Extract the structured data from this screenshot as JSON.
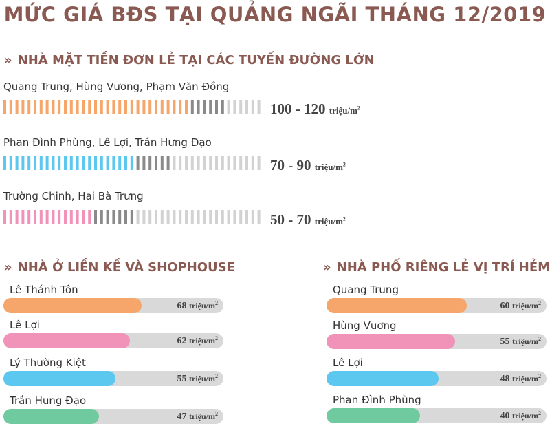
{
  "title": "MỨC GIÁ BĐS TẠI QUẢNG NGÃI THÁNG 12/2019",
  "chart_data": [
    {
      "type": "bar",
      "title": "NHÀ MẶT TIỀN ĐƠN LẺ TẠI CÁC TUYẾN ĐƯỜNG LỚN",
      "unit": "triệu/m²",
      "categories": [
        "Quang Trung, Hùng Vương, Phạm Văn Đồng",
        "Phan Đình Phùng, Lê Lợi, Trần Hưng Đạo",
        "Trường Chinh, Hai Bà Trưng"
      ],
      "ranges": [
        [
          100,
          120
        ],
        [
          70,
          90
        ],
        [
          50,
          70
        ]
      ],
      "value_labels": [
        "100 - 120",
        "70 - 90",
        "50 - 70"
      ],
      "colors": [
        "#f6a66a",
        "#5cc8f0",
        "#f192b8"
      ],
      "dark_color": "#8a8a8a",
      "light_color": "#d2d2d2",
      "scale_max": 140
    },
    {
      "type": "bar",
      "title": "NHÀ Ở LIỀN KỀ VÀ SHOPHOUSE",
      "unit": "triệu/m²",
      "categories": [
        "Lê Thánh Tôn",
        "Lê Lợi",
        "Lý Thường Kiệt",
        "Trần Hưng Đạo"
      ],
      "values": [
        68,
        62,
        55,
        47
      ],
      "colors": [
        "#f6a66a",
        "#f192b8",
        "#5cc8f0",
        "#6fcaa0"
      ],
      "scale_max": 108
    },
    {
      "type": "bar",
      "title": "NHÀ PHỐ RIÊNG LẺ VỊ TRÍ HẺM",
      "unit": "triệu/m²",
      "categories": [
        "Quang Trung",
        "Hùng Vương",
        "Lê Lợi",
        "Phan Đình Phùng"
      ],
      "values": [
        60,
        55,
        48,
        40
      ],
      "colors": [
        "#f6a66a",
        "#f192b8",
        "#5cc8f0",
        "#6fcaa0"
      ],
      "scale_max": 94
    }
  ]
}
